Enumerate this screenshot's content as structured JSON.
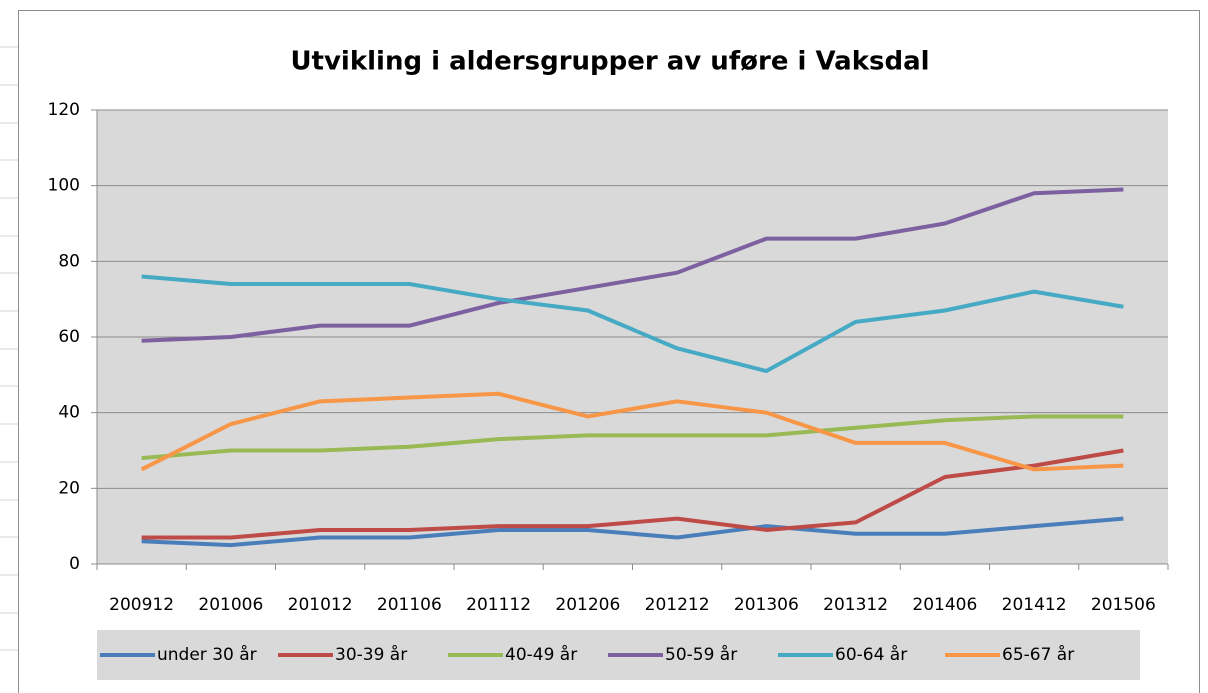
{
  "chart_data": {
    "type": "line",
    "title": "Utvikling i aldersgrupper av uføre i Vaksdal",
    "categories": [
      "200912",
      "201006",
      "201012",
      "201106",
      "201112",
      "201206",
      "201212",
      "201306",
      "201312",
      "201406",
      "201412",
      "201506"
    ],
    "series": [
      {
        "name": "under 30 år",
        "color": "#4a7ebb",
        "values": [
          6,
          5,
          7,
          7,
          9,
          9,
          7,
          10,
          8,
          8,
          10,
          12
        ]
      },
      {
        "name": "30-39 år",
        "color": "#be4b48",
        "values": [
          7,
          7,
          9,
          9,
          10,
          10,
          12,
          9,
          11,
          23,
          26,
          30
        ]
      },
      {
        "name": "40-49 år",
        "color": "#98b954",
        "values": [
          28,
          30,
          30,
          31,
          33,
          34,
          34,
          34,
          36,
          38,
          39,
          39
        ]
      },
      {
        "name": "50-59 år",
        "color": "#7d60a0",
        "values": [
          59,
          60,
          63,
          63,
          69,
          73,
          77,
          86,
          86,
          90,
          98,
          99
        ]
      },
      {
        "name": "60-64 år",
        "color": "#46aac5",
        "values": [
          76,
          74,
          74,
          74,
          70,
          67,
          57,
          51,
          64,
          67,
          72,
          68
        ]
      },
      {
        "name": "65-67 år",
        "color": "#f79646",
        "values": [
          25,
          37,
          43,
          44,
          45,
          39,
          43,
          40,
          32,
          32,
          25,
          26
        ]
      }
    ],
    "ylim": [
      0,
      120
    ],
    "yticks": [
      0,
      20,
      40,
      60,
      80,
      100,
      120
    ],
    "grid": true,
    "legend": "bottom"
  }
}
